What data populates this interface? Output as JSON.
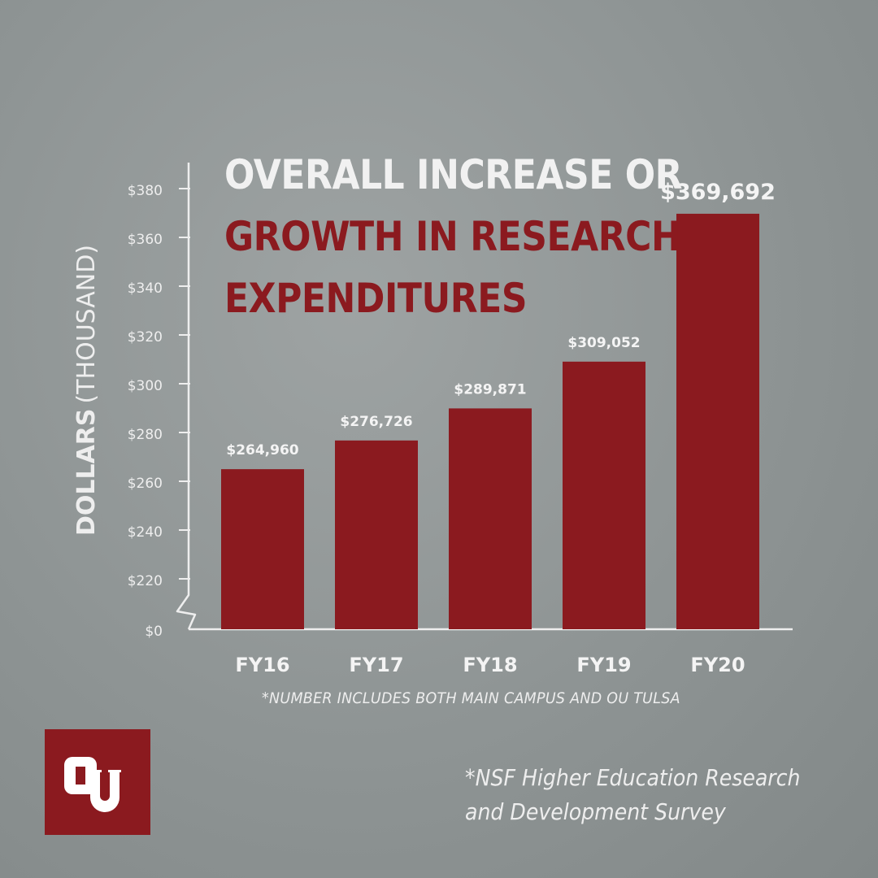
{
  "chart_data": {
    "type": "bar",
    "title_lines": [
      "OVERALL INCREASE OR",
      "GROWTH IN RESEARCH",
      "EXPENDITURES"
    ],
    "categories": [
      "FY16",
      "FY17",
      "FY18",
      "FY19",
      "FY20"
    ],
    "values": [
      264960,
      276726,
      289871,
      309052,
      369692
    ],
    "value_labels": [
      "$264,960",
      "$276,726",
      "$289,871",
      "$309,052",
      "$369,692"
    ],
    "ylabel_bold": "DOLLARS",
    "ylabel_light": "(THOUSAND)",
    "y_ticks": [
      {
        "value": 0,
        "label": "$0"
      },
      {
        "value": 220,
        "label": "$220"
      },
      {
        "value": 240,
        "label": "$240"
      },
      {
        "value": 260,
        "label": "$260"
      },
      {
        "value": 280,
        "label": "$280"
      },
      {
        "value": 300,
        "label": "$300"
      },
      {
        "value": 320,
        "label": "$320"
      },
      {
        "value": 340,
        "label": "$340"
      },
      {
        "value": 360,
        "label": "$360"
      },
      {
        "value": 380,
        "label": "$380"
      }
    ],
    "axis_break": true,
    "ylim": [
      200,
      390
    ],
    "grid": false
  },
  "footnotes": {
    "campus": "*NUMBER INCLUDES BOTH MAIN CAMPUS AND OU TULSA",
    "source_line1": "*NSF Higher Education Research",
    "source_line2": "and Development Survey"
  },
  "colors": {
    "bar": "#8b1a1f",
    "title_highlight": "#8b1a1f",
    "text_light": "#f1f1f1",
    "background": "#939999"
  },
  "logo": {
    "name": "ou-logo"
  }
}
